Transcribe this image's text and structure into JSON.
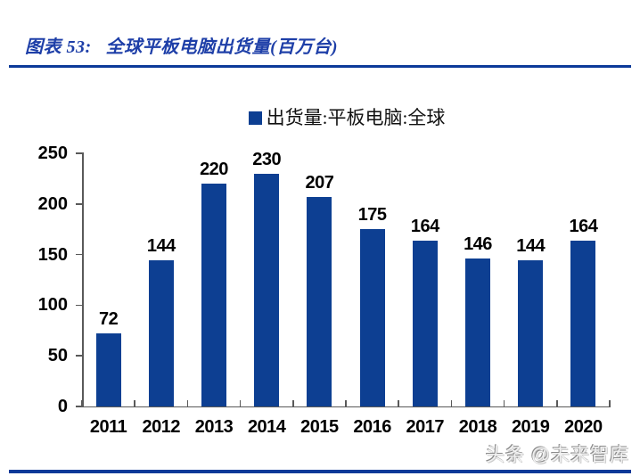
{
  "header": {
    "figure_label": "图表 53:",
    "figure_title": "全球平板电脑出货量(百万台)"
  },
  "chart_data": {
    "type": "bar",
    "title": "全球平板电脑出货量(百万台)",
    "legend_label": "出货量:平板电脑:全球",
    "legend_position": "top-center",
    "categories": [
      "2011",
      "2012",
      "2013",
      "2014",
      "2015",
      "2016",
      "2017",
      "2018",
      "2019",
      "2020"
    ],
    "values": [
      72,
      144,
      220,
      230,
      207,
      175,
      164,
      146,
      144,
      164
    ],
    "xlabel": "",
    "ylabel": "",
    "ylim": [
      0,
      250
    ],
    "yticks": [
      0,
      50,
      100,
      150,
      200,
      250
    ],
    "grid": false,
    "value_labels_shown": true,
    "bar_color": "#0d3f92"
  },
  "footer": {
    "watermark": "头条 @未来智库"
  },
  "colors": {
    "accent_blue": "#0c3a99",
    "title_blue": "#1e3fa8",
    "bar_blue": "#0d3f92",
    "axis_gray": "#595959",
    "label_black": "#000000"
  }
}
